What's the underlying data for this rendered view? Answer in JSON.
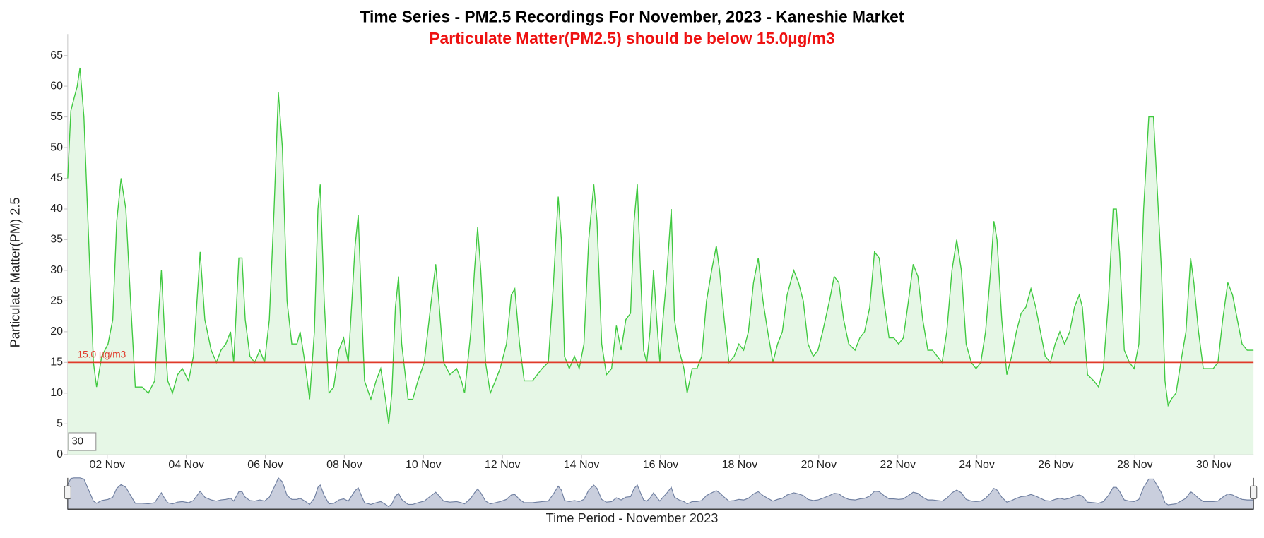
{
  "chart_data": {
    "type": "line",
    "title": "Time Series - PM2.5 Recordings For November, 2023 - Kaneshie Market",
    "subtitle": "Particulate Matter(PM2.5) should be below 15.0µg/m3",
    "y_label": "Particulate Matter(PM) 2.5",
    "x_label": "Time Period - November 2023",
    "rolling_period": 30,
    "color": "#3fc93f",
    "fill": "#e6f7e6",
    "threshold": {
      "value": 15,
      "label": "15.0 µg/m3",
      "color": "#e03a2a"
    },
    "xlim": [
      1,
      31
    ],
    "ylim": [
      0,
      68.5
    ],
    "yticks": [
      0,
      5,
      10,
      15,
      20,
      25,
      30,
      35,
      40,
      45,
      50,
      55,
      60,
      65
    ],
    "xticks": [
      {
        "value": 2,
        "label": "02 Nov"
      },
      {
        "value": 4,
        "label": "04 Nov"
      },
      {
        "value": 6,
        "label": "06 Nov"
      },
      {
        "value": 8,
        "label": "08 Nov"
      },
      {
        "value": 10,
        "label": "10 Nov"
      },
      {
        "value": 12,
        "label": "12 Nov"
      },
      {
        "value": 14,
        "label": "14 Nov"
      },
      {
        "value": 16,
        "label": "16 Nov"
      },
      {
        "value": 18,
        "label": "18 Nov"
      },
      {
        "value": 20,
        "label": "20 Nov"
      },
      {
        "value": 22,
        "label": "22 Nov"
      },
      {
        "value": 24,
        "label": "24 Nov"
      },
      {
        "value": 26,
        "label": "26 Nov"
      },
      {
        "value": 28,
        "label": "28 Nov"
      },
      {
        "value": 30,
        "label": "30 Nov"
      }
    ],
    "x": [
      1.0,
      1.08,
      1.16,
      1.24,
      1.31,
      1.41,
      1.53,
      1.65,
      1.73,
      1.86,
      2.02,
      2.14,
      2.24,
      2.35,
      2.47,
      2.59,
      2.71,
      2.88,
      3.04,
      3.2,
      3.29,
      3.37,
      3.45,
      3.53,
      3.65,
      3.78,
      3.9,
      4.06,
      4.18,
      4.35,
      4.47,
      4.63,
      4.76,
      4.88,
      5.0,
      5.12,
      5.2,
      5.33,
      5.41,
      5.49,
      5.61,
      5.73,
      5.86,
      5.98,
      6.1,
      6.22,
      6.33,
      6.43,
      6.55,
      6.67,
      6.8,
      6.88,
      7.0,
      7.12,
      7.24,
      7.33,
      7.39,
      7.49,
      7.61,
      7.73,
      7.86,
      7.98,
      8.1,
      8.27,
      8.35,
      8.43,
      8.51,
      8.67,
      8.8,
      8.92,
      9.04,
      9.12,
      9.2,
      9.29,
      9.37,
      9.45,
      9.61,
      9.73,
      9.86,
      10.02,
      10.18,
      10.31,
      10.39,
      10.51,
      10.67,
      10.84,
      10.96,
      11.04,
      11.2,
      11.29,
      11.37,
      11.45,
      11.57,
      11.69,
      11.82,
      11.94,
      12.1,
      12.22,
      12.31,
      12.43,
      12.55,
      12.76,
      12.88,
      13.0,
      13.16,
      13.29,
      13.41,
      13.49,
      13.57,
      13.69,
      13.82,
      13.94,
      14.06,
      14.18,
      14.31,
      14.39,
      14.51,
      14.63,
      14.76,
      14.88,
      15.0,
      15.12,
      15.24,
      15.33,
      15.41,
      15.49,
      15.57,
      15.65,
      15.73,
      15.82,
      15.9,
      15.98,
      16.06,
      16.14,
      16.27,
      16.35,
      16.47,
      16.59,
      16.67,
      16.8,
      16.92,
      17.04,
      17.16,
      17.29,
      17.41,
      17.49,
      17.61,
      17.73,
      17.86,
      17.98,
      18.1,
      18.22,
      18.35,
      18.47,
      18.59,
      18.71,
      18.84,
      18.96,
      19.08,
      19.2,
      19.37,
      19.49,
      19.61,
      19.73,
      19.86,
      19.98,
      20.1,
      20.27,
      20.39,
      20.51,
      20.63,
      20.76,
      20.92,
      21.04,
      21.16,
      21.29,
      21.41,
      21.53,
      21.65,
      21.78,
      21.9,
      22.02,
      22.14,
      22.27,
      22.39,
      22.51,
      22.63,
      22.76,
      22.88,
      23.0,
      23.12,
      23.24,
      23.37,
      23.49,
      23.61,
      23.73,
      23.86,
      23.98,
      24.1,
      24.22,
      24.35,
      24.43,
      24.51,
      24.63,
      24.76,
      24.88,
      25.0,
      25.12,
      25.24,
      25.37,
      25.49,
      25.61,
      25.73,
      25.86,
      25.98,
      26.1,
      26.22,
      26.35,
      26.47,
      26.59,
      26.67,
      26.8,
      26.96,
      27.08,
      27.2,
      27.33,
      27.45,
      27.53,
      27.61,
      27.73,
      27.86,
      27.98,
      28.1,
      28.22,
      28.35,
      28.47,
      28.55,
      28.67,
      28.76,
      28.84,
      28.92,
      29.04,
      29.16,
      29.29,
      29.41,
      29.49,
      29.61,
      29.73,
      29.86,
      29.98,
      30.1,
      30.22,
      30.35,
      30.47,
      30.59,
      30.71,
      30.84,
      31.0
    ],
    "values": [
      45,
      56,
      58,
      60,
      63,
      55,
      35,
      15,
      11,
      16,
      18,
      22,
      38,
      45,
      40,
      25,
      11,
      11,
      10,
      12,
      22,
      30,
      20,
      12,
      10,
      13,
      14,
      12,
      16,
      33,
      22,
      17,
      15,
      17,
      18,
      20,
      15,
      32,
      32,
      22,
      16,
      15,
      17,
      15,
      22,
      40,
      59,
      50,
      25,
      18,
      18,
      20,
      15,
      9,
      20,
      40,
      44,
      25,
      10,
      11,
      17,
      19,
      15,
      34,
      39,
      25,
      12,
      9,
      12,
      14,
      9,
      5,
      10,
      24,
      29,
      18,
      9,
      9,
      12,
      15,
      24,
      31,
      25,
      15,
      13,
      14,
      12,
      10,
      20,
      30,
      37,
      30,
      15,
      10,
      12,
      14,
      18,
      26,
      27,
      18,
      12,
      12,
      13,
      14,
      15,
      28,
      42,
      35,
      16,
      14,
      16,
      14,
      18,
      35,
      44,
      38,
      18,
      13,
      14,
      21,
      17,
      22,
      23,
      38,
      44,
      30,
      17,
      15,
      20,
      30,
      22,
      15,
      22,
      28,
      40,
      22,
      17,
      14,
      10,
      14,
      14,
      16,
      25,
      30,
      34,
      30,
      22,
      15,
      16,
      18,
      17,
      20,
      28,
      32,
      25,
      20,
      15,
      18,
      20,
      26,
      30,
      28,
      25,
      18,
      16,
      17,
      20,
      25,
      29,
      28,
      22,
      18,
      17,
      19,
      20,
      24,
      33,
      32,
      25,
      19,
      19,
      18,
      19,
      25,
      31,
      29,
      22,
      17,
      17,
      16,
      15,
      20,
      30,
      35,
      30,
      18,
      15,
      14,
      15,
      20,
      30,
      38,
      35,
      22,
      13,
      16,
      20,
      23,
      24,
      27,
      24,
      20,
      16,
      15,
      18,
      20,
      18,
      20,
      24,
      26,
      24,
      13,
      12,
      11,
      14,
      25,
      40,
      40,
      33,
      17,
      15,
      14,
      18,
      40,
      55,
      55,
      45,
      30,
      12,
      8,
      9,
      10,
      15,
      20,
      32,
      28,
      20,
      14,
      14,
      14,
      15,
      22,
      28,
      26,
      22,
      18,
      17,
      17
    ]
  }
}
